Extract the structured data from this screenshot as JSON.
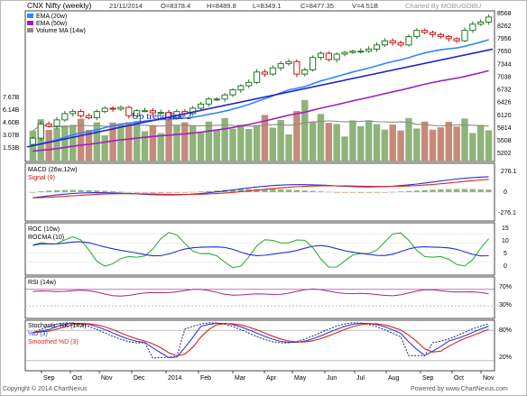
{
  "header": {
    "title": "CNX Nifty (weekly)",
    "date": "21/11/2014",
    "open": "O=8378.4",
    "high": "H=8489.8",
    "low": "L=8349.1",
    "close": "C=8477.35",
    "volume": "V=4.51B",
    "charted_by": "Charted By MOBUGOBU"
  },
  "footer": {
    "copyright": "Copyright © 2014 ChartNexus",
    "powered_by": "Powered by www.ChartNexus.com"
  },
  "annotation": "Up trend line 2",
  "x_labels": [
    "Sep",
    "Oct",
    "Nov",
    "Dec",
    "2014",
    "Feb",
    "Mar",
    "Apr",
    "May",
    "Jun",
    "Jul",
    "Aug",
    "Sep",
    "Oct",
    "Nov"
  ],
  "chart_data": [
    {
      "type": "candlestick",
      "title": "CNX Nifty (weekly)",
      "legend": [
        "EMA (20w)",
        "EMA (50w)",
        "Volume MA (14w)"
      ],
      "legend_colors": [
        "#2e86ff",
        "#a020c0",
        "#8c8c7c"
      ],
      "y_ticks": [
        8568,
        8262,
        7956,
        7650,
        7344,
        7038,
        6732,
        6426,
        6120,
        5814,
        5508,
        5202
      ],
      "ylim": [
        5000,
        8620
      ],
      "volume_ticks": [
        "7.67B",
        "6.14B",
        "4.60B",
        "3.07B",
        "1.53B"
      ],
      "volume_tick_values": [
        7.67,
        6.14,
        4.6,
        3.07,
        1.53
      ],
      "closes": [
        5560,
        5900,
        5850,
        6000,
        6150,
        6200,
        6100,
        6050,
        6200,
        6280,
        6260,
        6300,
        6100,
        6220,
        6220,
        6170,
        6180,
        6050,
        6200,
        6150,
        6280,
        6380,
        6500,
        6500,
        6600,
        6720,
        6820,
        6900,
        7150,
        7100,
        7250,
        7350,
        7400,
        7100,
        7200,
        7500,
        7600,
        7450,
        7580,
        7620,
        7650,
        7650,
        7700,
        7800,
        7900,
        7850,
        7800,
        8000,
        8150,
        8100,
        8050,
        8000,
        7950,
        7900,
        8150,
        8300,
        8350,
        8470
      ]
    },
    {
      "type": "line",
      "title": "MACD (26w,12w)",
      "legend": [
        "MACD (26w,12w)",
        "Signal (9)"
      ],
      "y_ticks": [
        "276.1",
        "0",
        "-276.1"
      ],
      "ylim": [
        -380,
        380
      ]
    },
    {
      "type": "line",
      "title": "ROC (10w)",
      "legend": [
        "ROC (10w)",
        "ROCMA (10)"
      ],
      "y_ticks": [
        "15",
        "10",
        "5",
        "0"
      ],
      "ylim": [
        -5,
        20
      ]
    },
    {
      "type": "line",
      "title": "RSI (14w)",
      "legend": [
        "RSI (14w)"
      ],
      "y_ticks": [
        "70%",
        "30%"
      ],
      "ylim": [
        0,
        100
      ]
    },
    {
      "type": "line",
      "title": "Stochastic %K (14w)",
      "legend": [
        "Stochastic %K (14w)",
        "%D (3)",
        "Smoothed %D (3)"
      ],
      "y_ticks": [
        "80%",
        "20%"
      ],
      "ylim": [
        0,
        100
      ]
    }
  ],
  "colors": {
    "up": "#1e7a1e",
    "down": "#cc1111",
    "ema20": "#2e86ff",
    "ema50": "#a020c0",
    "trend": "#2222cc",
    "vol_up": "#8fb47a",
    "vol_down": "#c68a7a",
    "vol_ma": "#8c8c7c",
    "macd": "#2233cc",
    "signal": "#dd2222",
    "roc": "#22aa22",
    "rocma": "#2233cc",
    "rsi": "#aa2288",
    "stoch_k": "#222266",
    "stoch_d": "#2244dd",
    "stoch_sd": "#dd2222"
  }
}
